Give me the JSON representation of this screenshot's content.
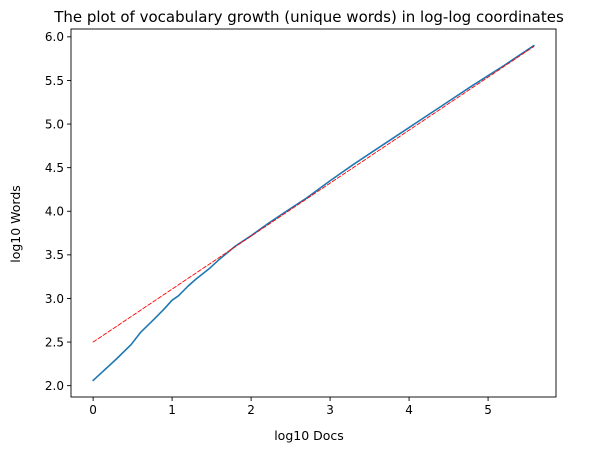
{
  "chart_data": {
    "type": "line",
    "title": "The plot of vocabulary growth (unique words) in log-log coordinates",
    "xlabel": "log10 Docs",
    "ylabel": "log10 Words",
    "xlim": [
      -0.28,
      5.86
    ],
    "ylim": [
      1.87,
      6.09
    ],
    "xticks": [
      0,
      1,
      2,
      3,
      4,
      5
    ],
    "yticks": [
      2.0,
      2.5,
      3.0,
      3.5,
      4.0,
      4.5,
      5.0,
      5.5,
      6.0
    ],
    "xtick_labels": [
      "0",
      "1",
      "2",
      "3",
      "4",
      "5"
    ],
    "ytick_labels": [
      "2.0",
      "2.5",
      "3.0",
      "3.5",
      "4.0",
      "4.5",
      "5.0",
      "5.5",
      "6.0"
    ],
    "grid": false,
    "legend": "none",
    "series": [
      {
        "style": "solid",
        "color": "#1f77b4",
        "x": [
          0,
          0.3,
          0.48,
          0.6,
          0.78,
          0.9,
          1.0,
          1.08,
          1.2,
          1.3,
          1.48,
          1.6,
          1.8,
          2.0,
          2.2,
          2.48,
          2.7,
          3.0,
          3.3,
          3.6,
          4.0,
          4.4,
          4.8,
          5.2,
          5.58
        ],
        "y": [
          2.06,
          2.31,
          2.47,
          2.61,
          2.77,
          2.88,
          2.98,
          3.03,
          3.14,
          3.22,
          3.35,
          3.45,
          3.6,
          3.72,
          3.85,
          4.02,
          4.15,
          4.35,
          4.54,
          4.72,
          4.96,
          5.2,
          5.44,
          5.67,
          5.9
        ]
      },
      {
        "style": "dashed",
        "color": "#ff0000",
        "x": [
          0,
          5.58
        ],
        "y": [
          2.5,
          5.89
        ]
      }
    ]
  }
}
